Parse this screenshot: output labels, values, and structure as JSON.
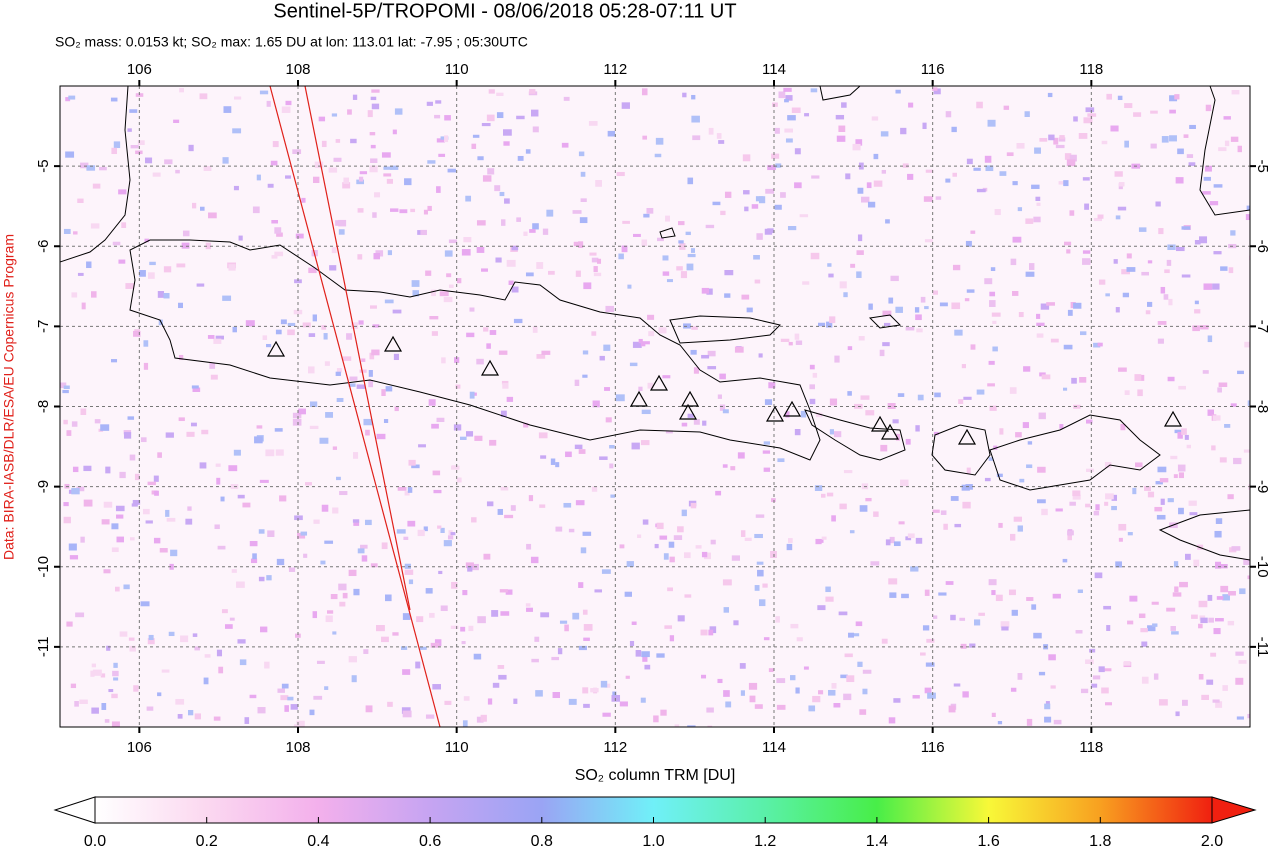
{
  "chart_data": {
    "type": "map",
    "title": "Sentinel-5P/TROPOMI - 08/06/2018 05:28-07:11 UT",
    "subtitle": "SO₂ mass: 0.0153 kt; SO₂ max: 1.65 DU at lon: 113.01 lat: -7.95 ; 05:30UTC",
    "credit": "Data: BIRA-IASB/DLR/ESA/EU Copernicus Program",
    "xlim": [
      105,
      120
    ],
    "ylim": [
      -12,
      -4
    ],
    "xticks": [
      106,
      108,
      110,
      112,
      114,
      116,
      118
    ],
    "yticks": [
      -5,
      -6,
      -7,
      -8,
      -9,
      -10,
      -11
    ],
    "grid": true,
    "colorbar": {
      "label": "SO₂ column TRM [DU]",
      "clim": [
        0,
        2
      ],
      "ticks": [
        {
          "value": 0,
          "label": "0.0"
        },
        {
          "value": 0.2,
          "label": "0.2"
        },
        {
          "value": 0.4,
          "label": "0.4"
        },
        {
          "value": 0.6,
          "label": "0.6"
        },
        {
          "value": 0.8,
          "label": "0.8"
        },
        {
          "value": 1,
          "label": "1.0"
        },
        {
          "value": 1.2,
          "label": "1.2"
        },
        {
          "value": 1.4,
          "label": "1.4"
        },
        {
          "value": 1.6,
          "label": "1.6"
        },
        {
          "value": 1.8,
          "label": "1.8"
        },
        {
          "value": 2,
          "label": "2.0"
        }
      ]
    }
  }
}
